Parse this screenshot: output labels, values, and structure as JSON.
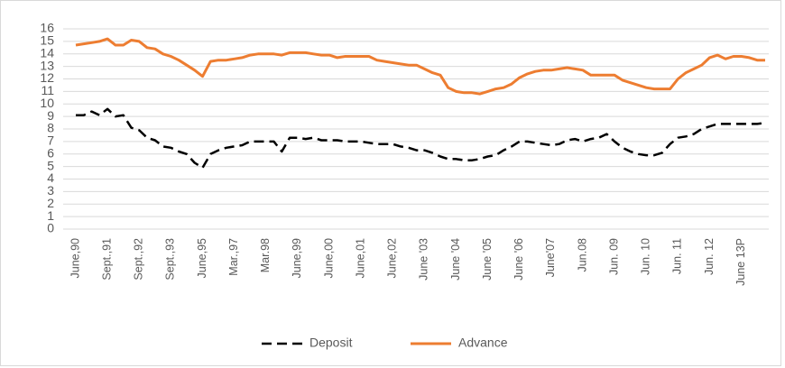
{
  "chart_data": {
    "type": "line",
    "categories": [
      "June,90",
      null,
      null,
      null,
      "Sept.,91",
      null,
      null,
      null,
      "Sept.,92",
      null,
      null,
      null,
      "Sept.,93",
      null,
      null,
      null,
      "June,95",
      null,
      null,
      null,
      "Mar.,97",
      null,
      null,
      null,
      "Mar.98",
      null,
      null,
      null,
      "June,99",
      null,
      null,
      null,
      "June,00",
      null,
      null,
      null,
      "June,01",
      null,
      null,
      null,
      "June,02",
      null,
      null,
      null,
      "June '03",
      null,
      null,
      null,
      "June '04",
      null,
      null,
      null,
      "June '05",
      null,
      null,
      null,
      "June '06",
      null,
      null,
      null,
      "June'07",
      null,
      null,
      null,
      "Jun.08",
      null,
      null,
      null,
      "Jun. 09",
      null,
      null,
      null,
      "Jun. 10",
      null,
      null,
      null,
      "Jun. 11",
      null,
      null,
      null,
      "Jun. 12",
      null,
      null,
      null,
      "June 13P",
      null,
      null,
      null
    ],
    "series": [
      {
        "name": "Deposit",
        "color": "#000000",
        "dashed": true,
        "values": [
          9.1,
          9.1,
          9.4,
          9.1,
          9.6,
          9.0,
          9.1,
          8.1,
          7.9,
          7.3,
          7.1,
          6.6,
          6.5,
          6.2,
          6.0,
          5.3,
          4.9,
          6.0,
          6.3,
          6.5,
          6.6,
          6.7,
          7.0,
          7.0,
          7.0,
          7.0,
          6.2,
          7.3,
          7.3,
          7.2,
          7.3,
          7.1,
          7.1,
          7.1,
          7.0,
          7.0,
          7.0,
          6.9,
          6.8,
          6.8,
          6.8,
          6.6,
          6.5,
          6.3,
          6.3,
          6.1,
          5.8,
          5.6,
          5.6,
          5.5,
          5.5,
          5.6,
          5.8,
          5.9,
          6.3,
          6.6,
          7.0,
          7.0,
          6.9,
          6.8,
          6.7,
          6.8,
          7.1,
          7.2,
          7.0,
          7.2,
          7.3,
          7.6,
          7.0,
          6.5,
          6.2,
          6.0,
          5.9,
          5.9,
          6.1,
          6.8,
          7.3,
          7.4,
          7.6,
          8.0,
          8.2,
          8.4,
          8.4,
          8.4,
          8.4,
          8.4,
          8.4,
          8.5
        ]
      },
      {
        "name": "Advance",
        "color": "#ed7d31",
        "dashed": false,
        "values": [
          14.7,
          14.8,
          14.9,
          15.0,
          15.2,
          14.7,
          14.7,
          15.1,
          15.0,
          14.5,
          14.4,
          14.0,
          13.8,
          13.5,
          13.1,
          12.7,
          12.2,
          13.4,
          13.5,
          13.5,
          13.6,
          13.7,
          13.9,
          14.0,
          14.0,
          14.0,
          13.9,
          14.1,
          14.1,
          14.1,
          14.0,
          13.9,
          13.9,
          13.7,
          13.8,
          13.8,
          13.8,
          13.8,
          13.5,
          13.4,
          13.3,
          13.2,
          13.1,
          13.1,
          12.8,
          12.5,
          12.3,
          11.3,
          11.0,
          10.9,
          10.9,
          10.8,
          11.0,
          11.2,
          11.3,
          11.6,
          12.1,
          12.4,
          12.6,
          12.7,
          12.7,
          12.8,
          12.9,
          12.8,
          12.7,
          12.3,
          12.3,
          12.3,
          12.3,
          11.9,
          11.7,
          11.5,
          11.3,
          11.2,
          11.2,
          11.2,
          12.0,
          12.5,
          12.8,
          13.1,
          13.7,
          13.9,
          13.6,
          13.8,
          13.8,
          13.7,
          13.5,
          13.5
        ]
      }
    ],
    "ylim": [
      0,
      16
    ],
    "yticks": [
      0,
      1,
      2,
      3,
      4,
      5,
      6,
      7,
      8,
      9,
      10,
      11,
      12,
      13,
      14,
      15,
      16
    ],
    "grid": true,
    "legend": "bottom"
  }
}
